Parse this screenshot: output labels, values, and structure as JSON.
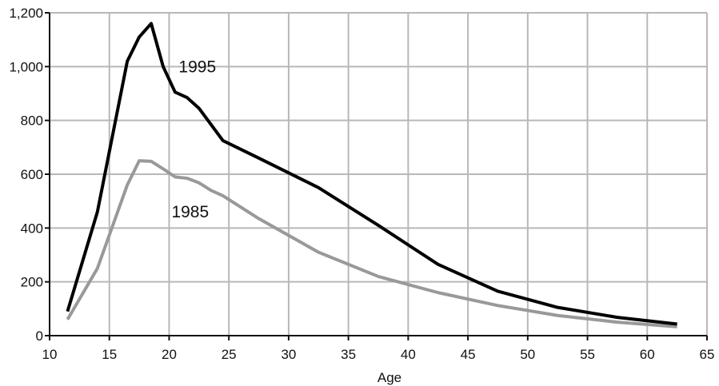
{
  "chart_data": {
    "type": "line",
    "title": "",
    "xlabel": "Age",
    "ylabel": "",
    "xlim": [
      10,
      65
    ],
    "ylim": [
      0,
      1200
    ],
    "x_ticks": [
      "10",
      "15",
      "20",
      "25",
      "30",
      "35",
      "40",
      "45",
      "50",
      "55",
      "60",
      "65"
    ],
    "y_ticks": [
      "0",
      "200",
      "400",
      "600",
      "800",
      "1,000",
      "1,200"
    ],
    "grid": true,
    "legend": "none",
    "series": [
      {
        "name": "1995",
        "color": "#000000",
        "points": [
          [
            11.5,
            90
          ],
          [
            14,
            460
          ],
          [
            16.5,
            1020
          ],
          [
            17.5,
            1110
          ],
          [
            18.5,
            1160
          ],
          [
            19.5,
            1000
          ],
          [
            20.5,
            905
          ],
          [
            21.5,
            885
          ],
          [
            22.5,
            845
          ],
          [
            24.5,
            725
          ],
          [
            27.5,
            660
          ],
          [
            32.5,
            550
          ],
          [
            37.5,
            410
          ],
          [
            42.5,
            265
          ],
          [
            47.5,
            165
          ],
          [
            52.5,
            105
          ],
          [
            57.5,
            68
          ],
          [
            62.5,
            43
          ]
        ]
      },
      {
        "name": "1985",
        "color": "#999999",
        "points": [
          [
            11.5,
            60
          ],
          [
            14,
            250
          ],
          [
            16.5,
            560
          ],
          [
            17.5,
            650
          ],
          [
            18.5,
            648
          ],
          [
            19.5,
            620
          ],
          [
            20.5,
            590
          ],
          [
            21.5,
            585
          ],
          [
            22.5,
            568
          ],
          [
            23.5,
            540
          ],
          [
            24.5,
            520
          ],
          [
            27.5,
            435
          ],
          [
            32.5,
            310
          ],
          [
            37.5,
            220
          ],
          [
            42.5,
            160
          ],
          [
            47.5,
            112
          ],
          [
            52.5,
            75
          ],
          [
            57.5,
            50
          ],
          [
            62.5,
            33
          ]
        ]
      }
    ]
  }
}
